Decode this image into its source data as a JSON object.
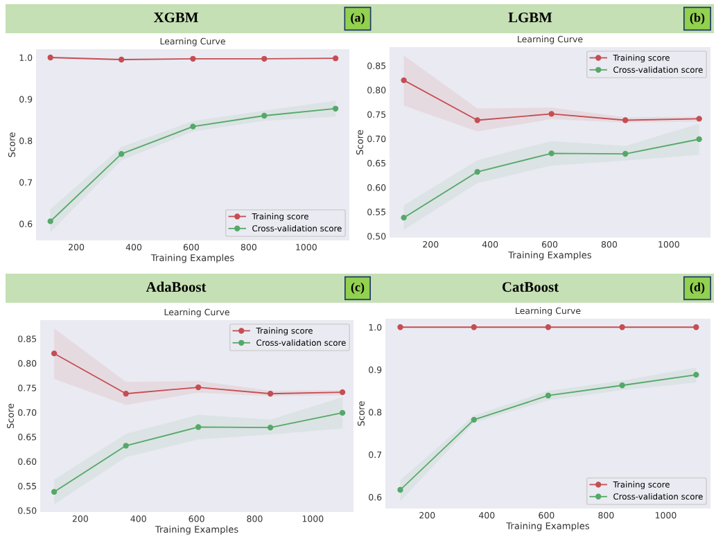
{
  "chart_data": [
    {
      "type": "line",
      "title": "XGBM",
      "subtitle": "Learning Curve",
      "annotations": [
        "(a)"
      ],
      "xlabel": "Training Examples",
      "ylabel": "Score",
      "x": [
        110,
        357,
        606,
        854,
        1102
      ],
      "xlim": [
        60,
        1150
      ],
      "xticks": [
        200,
        400,
        600,
        800,
        1000
      ],
      "ylim": [
        0.56,
        1.02
      ],
      "yticks": [
        {
          "value": 0.6,
          "label": "0.6"
        },
        {
          "value": 0.7,
          "label": "0.7"
        },
        {
          "value": 0.8,
          "label": "0.8"
        },
        {
          "value": 0.9,
          "label": "0.9"
        },
        {
          "value": 1.0,
          "label": "1.0"
        }
      ],
      "grid": false,
      "legend": "bottom right",
      "marker": "circle",
      "line_style": "solid",
      "series": [
        {
          "name": "Training score",
          "color": "#c44e52",
          "values": [
            1.0,
            0.995,
            0.997,
            0.997,
            0.998
          ]
        },
        {
          "name": "Cross-validation score",
          "color": "#55a868",
          "values": [
            0.606,
            0.768,
            0.834,
            0.86,
            0.877
          ],
          "lower": [
            0.58,
            0.753,
            0.822,
            0.848,
            0.858
          ],
          "upper": [
            0.635,
            0.785,
            0.847,
            0.872,
            0.896
          ]
        }
      ]
    },
    {
      "type": "line",
      "title": "LGBM",
      "subtitle": "Learning Curve",
      "annotations": [
        "(b)"
      ],
      "xlabel": "Training Examples",
      "ylabel": "Score",
      "x": [
        110,
        357,
        606,
        854,
        1102
      ],
      "xlim": [
        62,
        1140
      ],
      "xticks": [
        200,
        400,
        600,
        800,
        1000
      ],
      "ylim": [
        0.497,
        0.888
      ],
      "yticks": [
        {
          "value": 0.5,
          "label": "0.50"
        },
        {
          "value": 0.55,
          "label": "0.55"
        },
        {
          "value": 0.6,
          "label": "0.60"
        },
        {
          "value": 0.65,
          "label": "0.65"
        },
        {
          "value": 0.7,
          "label": "0.70"
        },
        {
          "value": 0.75,
          "label": "0.75"
        },
        {
          "value": 0.8,
          "label": "0.80"
        },
        {
          "value": 0.85,
          "label": "0.85"
        }
      ],
      "grid": false,
      "legend": "top right",
      "marker": "circle",
      "line_style": "solid",
      "series": [
        {
          "name": "Training score",
          "color": "#c44e52",
          "values": [
            0.82,
            0.738,
            0.751,
            0.738,
            0.741
          ],
          "lower": [
            0.768,
            0.715,
            0.74,
            0.733,
            0.735
          ],
          "upper": [
            0.871,
            0.762,
            0.764,
            0.744,
            0.745
          ]
        },
        {
          "name": "Cross-validation score",
          "color": "#55a868",
          "values": [
            0.538,
            0.632,
            0.67,
            0.669,
            0.699
          ],
          "lower": [
            0.513,
            0.609,
            0.645,
            0.655,
            0.667
          ],
          "upper": [
            0.563,
            0.656,
            0.695,
            0.685,
            0.731
          ]
        }
      ]
    },
    {
      "type": "line",
      "title": "AdaBoost",
      "subtitle": "Learning Curve",
      "annotations": [
        "(c)"
      ],
      "xlabel": "Training Examples",
      "ylabel": "Score",
      "x": [
        110,
        357,
        606,
        854,
        1102
      ],
      "xlim": [
        62,
        1140
      ],
      "xticks": [
        200,
        400,
        600,
        800,
        1000
      ],
      "ylim": [
        0.497,
        0.888
      ],
      "yticks": [
        {
          "value": 0.5,
          "label": "0.50"
        },
        {
          "value": 0.55,
          "label": "0.55"
        },
        {
          "value": 0.6,
          "label": "0.60"
        },
        {
          "value": 0.65,
          "label": "0.65"
        },
        {
          "value": 0.7,
          "label": "0.70"
        },
        {
          "value": 0.75,
          "label": "0.75"
        },
        {
          "value": 0.8,
          "label": "0.80"
        },
        {
          "value": 0.85,
          "label": "0.85"
        }
      ],
      "grid": false,
      "legend": "top right",
      "marker": "circle",
      "line_style": "solid",
      "series": [
        {
          "name": "Training score",
          "color": "#c44e52",
          "values": [
            0.82,
            0.738,
            0.751,
            0.738,
            0.741
          ],
          "lower": [
            0.768,
            0.715,
            0.74,
            0.733,
            0.735
          ],
          "upper": [
            0.871,
            0.762,
            0.764,
            0.744,
            0.745
          ]
        },
        {
          "name": "Cross-validation score",
          "color": "#55a868",
          "values": [
            0.538,
            0.632,
            0.67,
            0.669,
            0.699
          ],
          "lower": [
            0.513,
            0.609,
            0.645,
            0.655,
            0.667
          ],
          "upper": [
            0.563,
            0.656,
            0.695,
            0.685,
            0.731
          ]
        }
      ]
    },
    {
      "type": "line",
      "title": "CatBoost",
      "subtitle": "Learning Curve",
      "annotations": [
        "(d)"
      ],
      "xlabel": "Training Examples",
      "ylabel": "Score",
      "x": [
        110,
        357,
        606,
        854,
        1102
      ],
      "xlim": [
        60,
        1150
      ],
      "xticks": [
        200,
        400,
        600,
        800,
        1000
      ],
      "ylim": [
        0.573,
        1.02
      ],
      "yticks": [
        {
          "value": 0.6,
          "label": "0.6"
        },
        {
          "value": 0.7,
          "label": "0.7"
        },
        {
          "value": 0.8,
          "label": "0.8"
        },
        {
          "value": 0.9,
          "label": "0.9"
        },
        {
          "value": 1.0,
          "label": "1.0"
        }
      ],
      "grid": false,
      "legend": "bottom right",
      "marker": "circle",
      "line_style": "solid",
      "series": [
        {
          "name": "Training score",
          "color": "#c44e52",
          "values": [
            1.0,
            1.0,
            1.0,
            1.0,
            1.0
          ]
        },
        {
          "name": "Cross-validation score",
          "color": "#55a868",
          "values": [
            0.617,
            0.782,
            0.839,
            0.863,
            0.888
          ],
          "lower": [
            0.59,
            0.775,
            0.828,
            0.852,
            0.87
          ],
          "upper": [
            0.64,
            0.792,
            0.85,
            0.874,
            0.905
          ]
        }
      ]
    }
  ]
}
